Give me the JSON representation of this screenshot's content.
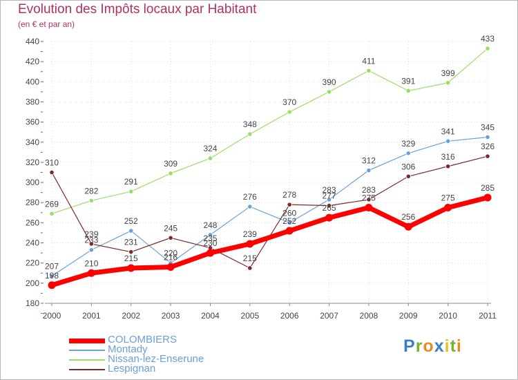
{
  "header": {
    "title": "Evolution des Impôts locaux par Habitant",
    "subtitle": "(en € et par an)"
  },
  "logo": {
    "letters": [
      "P",
      "r",
      "o",
      "x",
      "i",
      "t",
      "i"
    ],
    "colors": [
      "#3a7fc8",
      "#7ab030",
      "#e88a20",
      "#3a7fc8",
      "#e8c020",
      "#7ab030",
      "#e88a20"
    ]
  },
  "chart_data": {
    "type": "line",
    "x": [
      "2000",
      "2001",
      "2002",
      "2003",
      "2004",
      "2005",
      "2006",
      "2007",
      "2008",
      "2009",
      "2010",
      "2011"
    ],
    "ylim": [
      180,
      440
    ],
    "yticks": [
      180,
      200,
      220,
      240,
      260,
      280,
      300,
      320,
      340,
      360,
      380,
      400,
      420,
      440
    ],
    "grid": true,
    "legend_position": "bottom-left",
    "series": [
      {
        "name": "COLOMBIERS",
        "color": "#ff0000",
        "values": [
          198,
          210,
          215,
          216,
          230,
          239,
          252,
          265,
          275,
          256,
          275,
          285
        ],
        "labels": [
          "198",
          "210",
          "215",
          "216",
          "230",
          "239",
          "252",
          "265",
          "275",
          "256",
          "275",
          "285"
        ]
      },
      {
        "name": "Montady",
        "color": "#6a9fd8",
        "values": [
          207,
          233,
          252,
          220,
          248,
          276,
          260,
          283,
          312,
          329,
          341,
          345
        ],
        "labels": [
          "207",
          "233",
          "252",
          "220",
          "248",
          "276",
          "260",
          "283",
          "312",
          "329",
          "341",
          "345"
        ]
      },
      {
        "name": "Nissan-lez-Enserune",
        "color": "#99dd66",
        "values": [
          269,
          282,
          291,
          309,
          324,
          348,
          370,
          390,
          411,
          391,
          399,
          433
        ],
        "labels": [
          "269",
          "282",
          "291",
          "309",
          "324",
          "348",
          "370",
          "390",
          "411",
          "391",
          "399",
          "433"
        ]
      },
      {
        "name": "Lespignan",
        "color": "#7a2a2a",
        "values": [
          310,
          239,
          231,
          245,
          235,
          215,
          278,
          277,
          283,
          306,
          316,
          326
        ],
        "labels": [
          "310",
          "239",
          "231",
          "245",
          "235",
          "215",
          "278",
          "277",
          "283",
          "306",
          "316",
          "326"
        ]
      }
    ]
  }
}
